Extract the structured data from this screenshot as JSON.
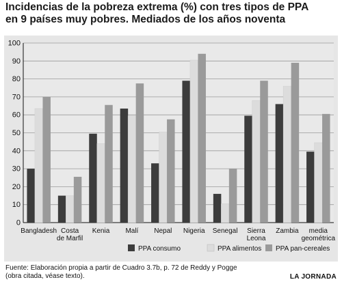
{
  "header": {
    "title_line1": "Incidencias de la pobreza extrema (%) con tres tipos de PPA",
    "title_line2": "en 9 países muy pobres. Mediados de los años noventa"
  },
  "footer": {
    "source_line1": "Fuente: Elaboración propia a partir de Cuadro  3.7b, p. 72 de Reddy y Pogge",
    "source_line2": "(obra citada, véase texto).",
    "credit": "LA JORNADA"
  },
  "chart_data": {
    "type": "bar",
    "title": "Incidencias de la pobreza extrema (%) con tres tipos de PPA en 9 países muy pobres. Mediados de los años noventa",
    "xlabel": "",
    "ylabel": "",
    "ylim": [
      0,
      100
    ],
    "yticks": [
      0,
      10,
      20,
      30,
      40,
      50,
      60,
      70,
      80,
      90,
      100
    ],
    "grid": true,
    "legend_position": "bottom",
    "categories": [
      [
        "Bangladesh"
      ],
      [
        "Costa",
        "de Marfil"
      ],
      [
        "Kenia"
      ],
      [
        "Malí"
      ],
      [
        "Nepal"
      ],
      [
        "Nigeria"
      ],
      [
        "Senegal"
      ],
      [
        "Sierra",
        "Leona"
      ],
      [
        "Zambia"
      ],
      [
        "media",
        "geométrica"
      ]
    ],
    "series": [
      {
        "name": "PPA consumo",
        "color": "#3c3c3c",
        "values": [
          30,
          15,
          49.5,
          63.5,
          33,
          79,
          16,
          59.5,
          66,
          39.5
        ]
      },
      {
        "name": "PPA alimentos",
        "color": "#dcdcdc",
        "values": [
          63.5,
          15,
          44,
          59.5,
          50.5,
          90.5,
          10.5,
          68,
          76,
          44.5
        ]
      },
      {
        "name": "PPA pan-cereales",
        "color": "#9a9a9a",
        "values": [
          70,
          25.5,
          65.5,
          77.5,
          57.5,
          94,
          30,
          79,
          89,
          60.5
        ]
      }
    ]
  }
}
